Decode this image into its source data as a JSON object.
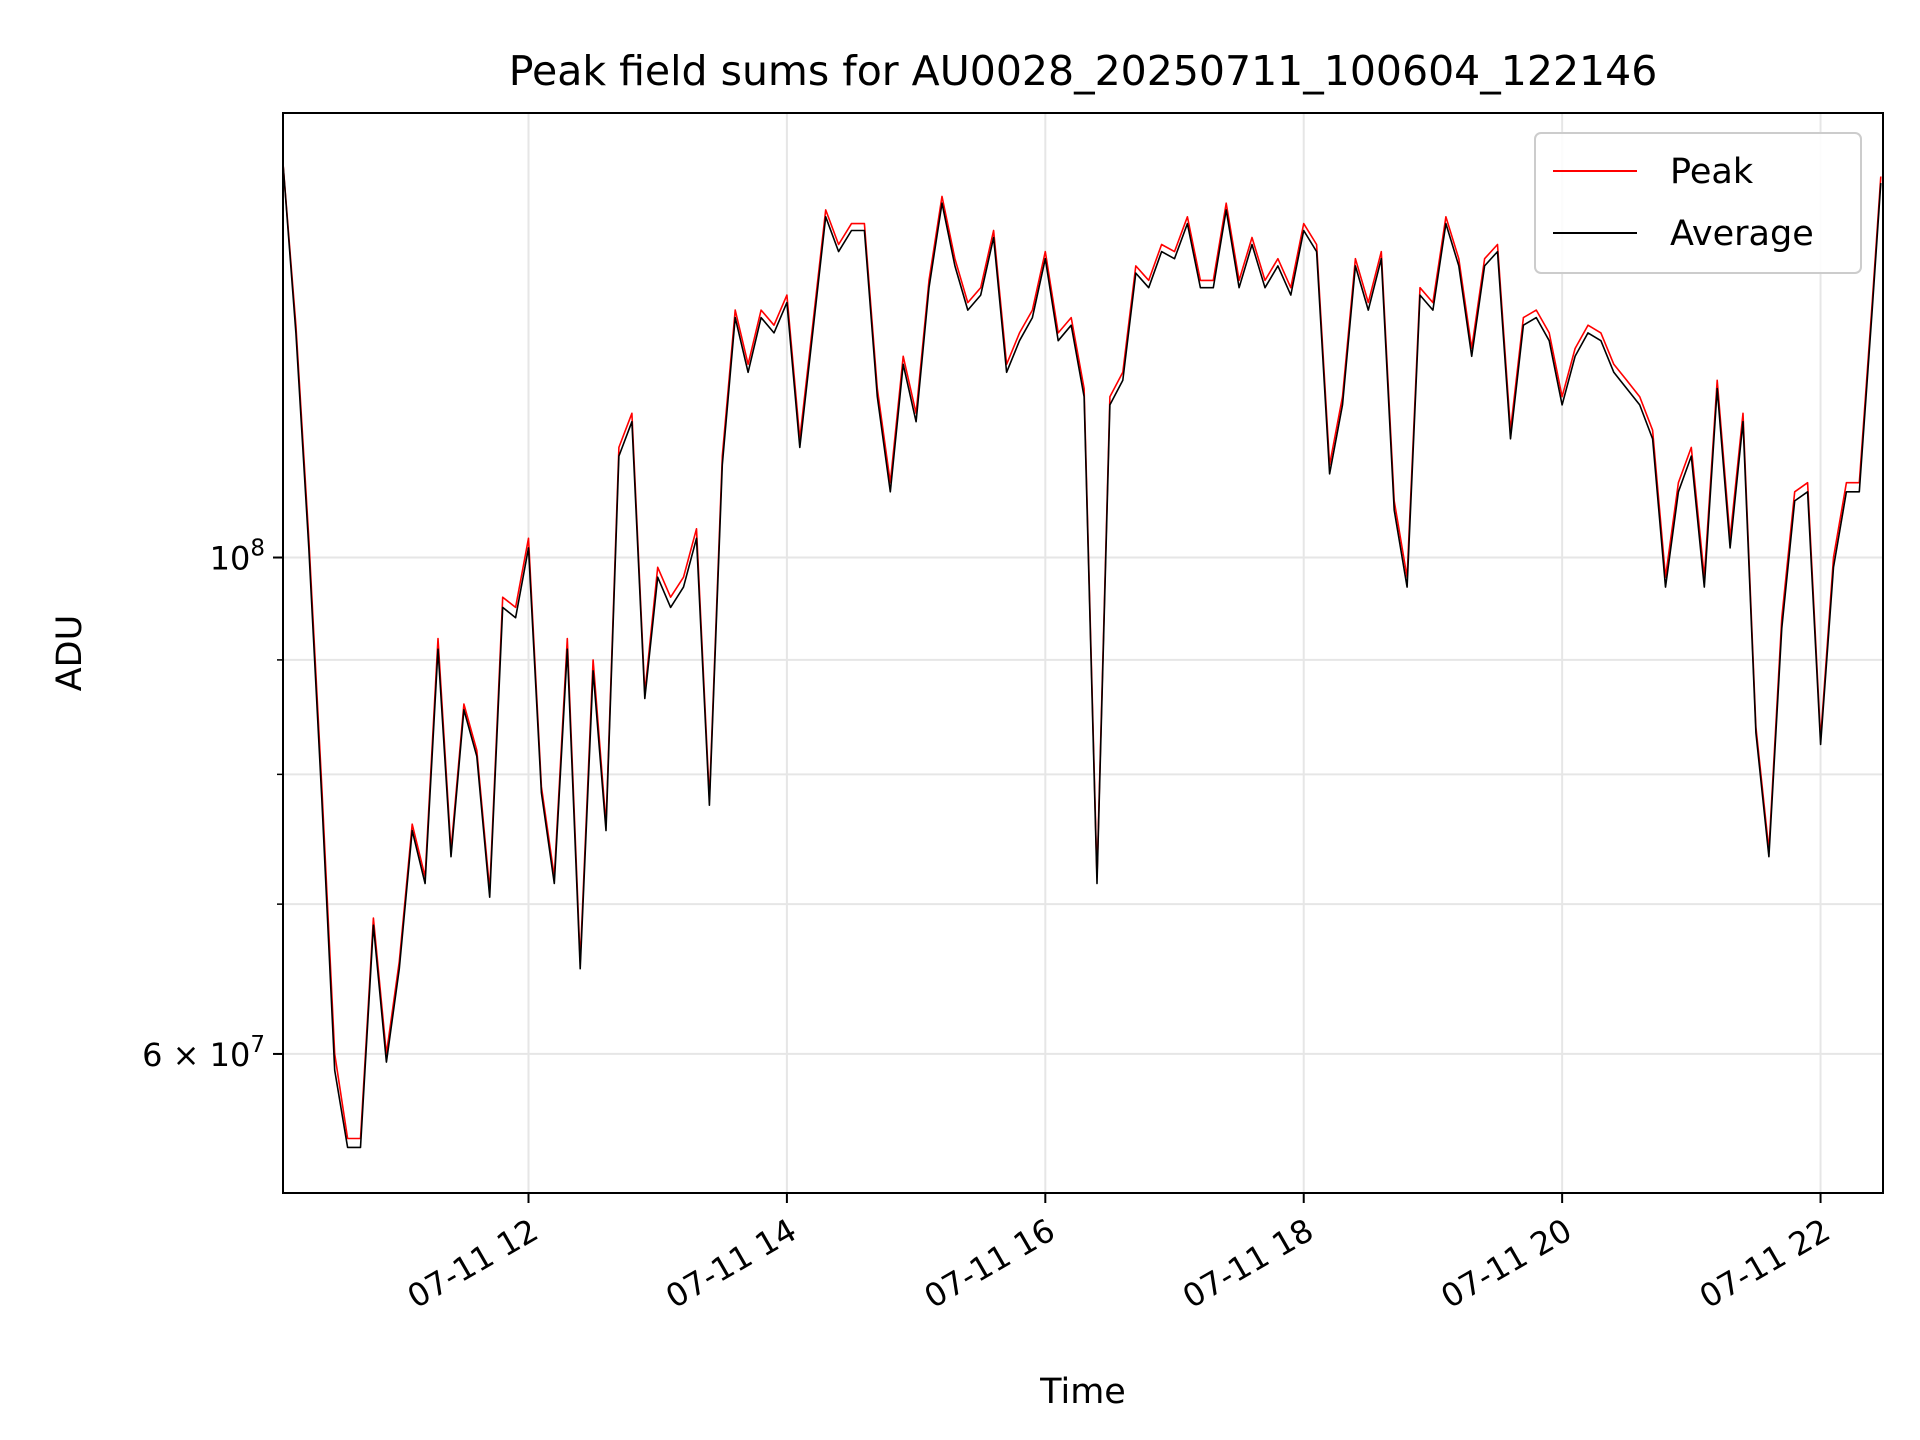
{
  "chart_data": {
    "type": "line",
    "title": "Peak field sums for AU0028_20250711_100604_122146",
    "xlabel": "Time",
    "ylabel": "ADU",
    "yscale": "log",
    "ylim": [
      52000000,
      158000000
    ],
    "xlim": [
      "2025-07-11 10:06",
      "2025-07-11 22:29"
    ],
    "grid": true,
    "legend_position": "top-right",
    "x_ticks": [
      {
        "t": "2025-07-11 12:00",
        "label": "07-11 12"
      },
      {
        "t": "2025-07-11 14:00",
        "label": "07-11 14"
      },
      {
        "t": "2025-07-11 16:00",
        "label": "07-11 16"
      },
      {
        "t": "2025-07-11 18:00",
        "label": "07-11 18"
      },
      {
        "t": "2025-07-11 20:00",
        "label": "07-11 20"
      },
      {
        "t": "2025-07-11 22:00",
        "label": "07-11 22"
      }
    ],
    "y_major_ticks": [
      {
        "value": 100000000,
        "mantissa": "",
        "base": "10",
        "exp": "8"
      },
      {
        "value": 60000000,
        "mantissa": "6 × ",
        "base": "10",
        "exp": "7"
      }
    ],
    "y_minor_ticks": [
      60000000,
      70000000,
      80000000,
      90000000,
      100000000
    ],
    "x": [
      "2025-07-11 10:06",
      "2025-07-11 10:12",
      "2025-07-11 10:18",
      "2025-07-11 10:24",
      "2025-07-11 10:30",
      "2025-07-11 10:36",
      "2025-07-11 10:42",
      "2025-07-11 10:48",
      "2025-07-11 10:54",
      "2025-07-11 11:00",
      "2025-07-11 11:06",
      "2025-07-11 11:12",
      "2025-07-11 11:18",
      "2025-07-11 11:24",
      "2025-07-11 11:30",
      "2025-07-11 11:36",
      "2025-07-11 11:42",
      "2025-07-11 11:48",
      "2025-07-11 11:54",
      "2025-07-11 12:00",
      "2025-07-11 12:06",
      "2025-07-11 12:12",
      "2025-07-11 12:18",
      "2025-07-11 12:24",
      "2025-07-11 12:30",
      "2025-07-11 12:36",
      "2025-07-11 12:42",
      "2025-07-11 12:48",
      "2025-07-11 12:54",
      "2025-07-11 13:00",
      "2025-07-11 13:06",
      "2025-07-11 13:12",
      "2025-07-11 13:18",
      "2025-07-11 13:24",
      "2025-07-11 13:30",
      "2025-07-11 13:36",
      "2025-07-11 13:42",
      "2025-07-11 13:48",
      "2025-07-11 13:54",
      "2025-07-11 14:00",
      "2025-07-11 14:06",
      "2025-07-11 14:12",
      "2025-07-11 14:18",
      "2025-07-11 14:24",
      "2025-07-11 14:30",
      "2025-07-11 14:36",
      "2025-07-11 14:42",
      "2025-07-11 14:48",
      "2025-07-11 14:54",
      "2025-07-11 15:00",
      "2025-07-11 15:06",
      "2025-07-11 15:12",
      "2025-07-11 15:18",
      "2025-07-11 15:24",
      "2025-07-11 15:30",
      "2025-07-11 15:36",
      "2025-07-11 15:42",
      "2025-07-11 15:48",
      "2025-07-11 15:54",
      "2025-07-11 16:00",
      "2025-07-11 16:06",
      "2025-07-11 16:12",
      "2025-07-11 16:18",
      "2025-07-11 16:24",
      "2025-07-11 16:30",
      "2025-07-11 16:36",
      "2025-07-11 16:42",
      "2025-07-11 16:48",
      "2025-07-11 16:54",
      "2025-07-11 17:00",
      "2025-07-11 17:06",
      "2025-07-11 17:12",
      "2025-07-11 17:18",
      "2025-07-11 17:24",
      "2025-07-11 17:30",
      "2025-07-11 17:36",
      "2025-07-11 17:42",
      "2025-07-11 17:48",
      "2025-07-11 17:54",
      "2025-07-11 18:00",
      "2025-07-11 18:06",
      "2025-07-11 18:12",
      "2025-07-11 18:18",
      "2025-07-11 18:24",
      "2025-07-11 18:30",
      "2025-07-11 18:36",
      "2025-07-11 18:42",
      "2025-07-11 18:48",
      "2025-07-11 18:54",
      "2025-07-11 19:00",
      "2025-07-11 19:06",
      "2025-07-11 19:12",
      "2025-07-11 19:18",
      "2025-07-11 19:24",
      "2025-07-11 19:30",
      "2025-07-11 19:36",
      "2025-07-11 19:42",
      "2025-07-11 19:48",
      "2025-07-11 19:54",
      "2025-07-11 20:00",
      "2025-07-11 20:06",
      "2025-07-11 20:12",
      "2025-07-11 20:18",
      "2025-07-11 20:24",
      "2025-07-11 20:30",
      "2025-07-11 20:36",
      "2025-07-11 20:42",
      "2025-07-11 20:48",
      "2025-07-11 20:54",
      "2025-07-11 21:00",
      "2025-07-11 21:06",
      "2025-07-11 21:12",
      "2025-07-11 21:18",
      "2025-07-11 21:24",
      "2025-07-11 21:30",
      "2025-07-11 21:36",
      "2025-07-11 21:42",
      "2025-07-11 21:48",
      "2025-07-11 21:54",
      "2025-07-11 22:00",
      "2025-07-11 22:06",
      "2025-07-11 22:12",
      "2025-07-11 22:18",
      "2025-07-11 22:24",
      "2025-07-11 22:28"
    ],
    "series": [
      {
        "name": "Peak",
        "color": "#ff0000",
        "values": [
          150000000,
          127000000,
          102000000,
          79000000,
          60000000,
          55000000,
          55000000,
          69000000,
          60000000,
          66000000,
          76000000,
          72000000,
          92000000,
          74000000,
          86000000,
          82000000,
          71000000,
          96000000,
          95000000,
          102000000,
          79000000,
          72000000,
          92000000,
          66000000,
          90000000,
          76000000,
          112000000,
          116000000,
          87000000,
          99000000,
          96000000,
          98000000,
          103000000,
          78000000,
          111000000,
          129000000,
          122000000,
          129000000,
          127000000,
          131000000,
          113000000,
          127000000,
          143000000,
          138000000,
          141000000,
          141000000,
          119000000,
          108000000,
          123000000,
          116000000,
          133000000,
          145000000,
          136000000,
          130000000,
          132000000,
          140000000,
          122000000,
          126000000,
          129000000,
          137000000,
          126000000,
          128000000,
          119000000,
          72000000,
          118000000,
          121000000,
          135000000,
          133000000,
          138000000,
          137000000,
          142000000,
          133000000,
          133000000,
          144000000,
          133000000,
          139000000,
          133000000,
          136000000,
          132000000,
          141000000,
          138000000,
          110000000,
          118000000,
          136000000,
          130000000,
          137000000,
          106000000,
          98000000,
          132000000,
          130000000,
          142000000,
          136000000,
          124000000,
          136000000,
          138000000,
          114000000,
          128000000,
          129000000,
          126000000,
          118000000,
          124000000,
          127000000,
          126000000,
          122000000,
          120000000,
          118000000,
          114000000,
          98000000,
          108000000,
          112000000,
          98000000,
          120000000,
          102000000,
          116000000,
          84000000,
          74000000,
          94000000,
          107000000,
          108000000,
          83000000,
          100000000,
          108000000,
          108000000,
          130000000,
          148000000
        ]
      },
      {
        "name": "Average",
        "color": "#000000",
        "values": [
          150000000,
          126000000,
          101000000,
          78000000,
          59000000,
          54500000,
          54500000,
          68500000,
          59500000,
          65500000,
          75500000,
          71500000,
          91000000,
          73500000,
          85500000,
          81500000,
          70500000,
          95000000,
          94000000,
          101000000,
          78500000,
          71500000,
          91000000,
          65500000,
          89000000,
          75500000,
          111000000,
          115000000,
          86500000,
          98000000,
          95000000,
          97000000,
          102000000,
          77500000,
          110000000,
          128000000,
          121000000,
          128000000,
          126000000,
          130000000,
          112000000,
          126000000,
          142000000,
          137000000,
          140000000,
          140000000,
          118000000,
          107000000,
          122000000,
          115000000,
          132000000,
          144000000,
          135000000,
          129000000,
          131000000,
          139000000,
          121000000,
          125000000,
          128000000,
          136000000,
          125000000,
          127000000,
          118000000,
          71500000,
          117000000,
          120000000,
          134000000,
          132000000,
          137000000,
          136000000,
          141000000,
          132000000,
          132000000,
          143000000,
          132000000,
          138000000,
          132000000,
          135000000,
          131000000,
          140000000,
          137000000,
          109000000,
          117000000,
          135000000,
          129000000,
          136000000,
          105000000,
          97000000,
          131000000,
          129000000,
          141000000,
          135000000,
          123000000,
          135000000,
          137000000,
          113000000,
          127000000,
          128000000,
          125000000,
          117000000,
          123000000,
          126000000,
          125000000,
          121000000,
          119000000,
          117000000,
          113000000,
          97000000,
          107000000,
          111000000,
          97000000,
          119000000,
          101000000,
          115000000,
          83500000,
          73500000,
          93000000,
          106000000,
          107000000,
          82500000,
          99000000,
          107000000,
          107000000,
          129000000,
          147000000
        ]
      }
    ]
  }
}
